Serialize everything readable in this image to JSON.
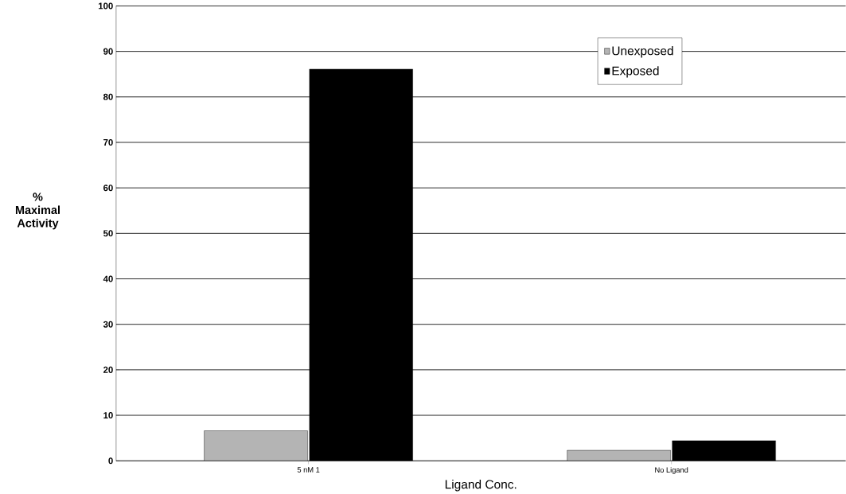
{
  "chart_data": {
    "type": "bar",
    "xlabel": "Ligand Conc.",
    "ylabel": "%\nMaximal\nActivity",
    "categories": [
      "5 nM 1",
      "No Ligand"
    ],
    "series": [
      {
        "name": "Unexposed",
        "color": "#b4b4b4",
        "values": [
          6.6,
          2.3
        ]
      },
      {
        "name": "Exposed",
        "color": "#000000",
        "values": [
          86.1,
          4.4
        ]
      }
    ],
    "ylim": [
      0,
      100
    ],
    "yticks": [
      0,
      10,
      20,
      30,
      40,
      50,
      60,
      70,
      80,
      90,
      100
    ],
    "grid": "y",
    "legend": "top right"
  }
}
